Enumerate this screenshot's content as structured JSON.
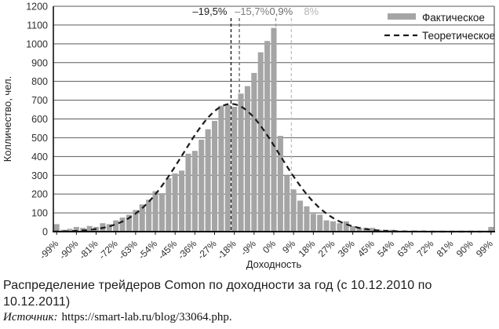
{
  "chart_data": {
    "type": "bar",
    "title": "",
    "xlabel": "Доходность",
    "ylabel": "Колличество, чел.",
    "ylim": [
      0,
      1200
    ],
    "ytick_step": 100,
    "y_tick_labels": [
      "0",
      "100",
      "200",
      "300",
      "400",
      "500",
      "600",
      "700",
      "800",
      "900",
      "1000",
      "1100",
      "1200"
    ],
    "x_tick_labels": [
      "-99%",
      "-90%",
      "-81%",
      "-72%",
      "-63%",
      "-54%",
      "-45%",
      "-36%",
      "-27%",
      "-18%",
      "-9%",
      "0%",
      "9%",
      "18%",
      "27%",
      "36%",
      "45%",
      "54%",
      "63%",
      "72%",
      "81%",
      "90%",
      "99%"
    ],
    "bin_start_pct": -99,
    "bin_step_pct": 3,
    "values": [
      40,
      10,
      15,
      25,
      20,
      30,
      25,
      45,
      40,
      60,
      75,
      90,
      115,
      145,
      170,
      215,
      205,
      285,
      310,
      325,
      415,
      430,
      490,
      545,
      590,
      670,
      675,
      665,
      735,
      775,
      845,
      955,
      1015,
      1085,
      510,
      300,
      225,
      165,
      135,
      95,
      90,
      60,
      55,
      45,
      55,
      30,
      20,
      20,
      20,
      10,
      10,
      10,
      5,
      5,
      5,
      5,
      5,
      5,
      5,
      5,
      5,
      5,
      5,
      5,
      5,
      5,
      25
    ],
    "series": [
      {
        "name": "Фактическое",
        "type": "bar",
        "color": "#a5a5a5"
      },
      {
        "name": "Теоретическое",
        "type": "dashed-line",
        "color": "#1a1a1a"
      }
    ],
    "theoretical_curve": {
      "shape": "normal",
      "mean_pct": -19.5,
      "sd_pct": 22,
      "peak": 680
    },
    "annotations": [
      {
        "label": "–19,5%",
        "x_pct": -19.5,
        "label_color": "#1f1f1f",
        "line_color": "#1a1a1a"
      },
      {
        "label": "–15,7%",
        "x_pct": -15.7,
        "label_color": "#7d7d7d",
        "line_color": "#6f6f6f"
      },
      {
        "label": "0,9%",
        "x_pct": 0.9,
        "label_color": "#6e6e6e",
        "line_color": "#9a9a9a"
      },
      {
        "label": "8%",
        "x_pct": 8,
        "label_color": "#b5b5b5",
        "line_color": "#c4c4c4"
      }
    ],
    "grid": "horizontal",
    "legend_position": "top-right"
  },
  "caption": {
    "text": "Распределение трейдеров Comon по доходности за год (с 10.12.2010 по 10.12.2011)"
  },
  "source": {
    "label": "Источник:",
    "url": "https://smart-lab.ru/blog/33064.php."
  }
}
